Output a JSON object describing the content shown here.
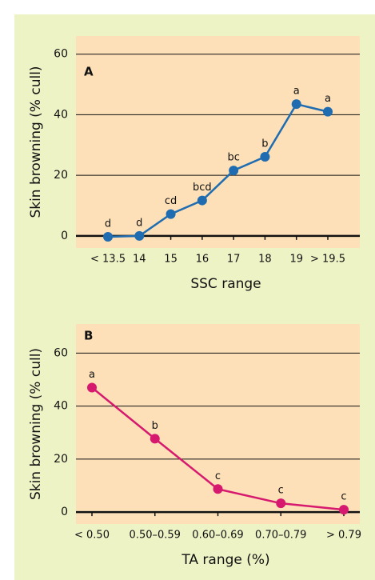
{
  "chart_data": [
    {
      "type": "line",
      "panel": "A",
      "ylabel": "Skin browning (% cull)",
      "xlabel": "SSC range",
      "categories": [
        "< 13.5",
        "14",
        "15",
        "16",
        "17",
        "18",
        "19",
        "> 19.5"
      ],
      "series": [
        {
          "name": "Skin browning",
          "color": "#1f6db0",
          "values": [
            -0.3,
            0,
            7.2,
            11.7,
            21.6,
            26.1,
            43.5,
            41
          ]
        }
      ],
      "letters": [
        "d",
        "d",
        "cd",
        "bcd",
        "bc",
        "b",
        "a",
        "a"
      ],
      "ylim": [
        -4,
        66
      ],
      "yticks": [
        0,
        20,
        40,
        60
      ],
      "grid": true
    },
    {
      "type": "line",
      "panel": "B",
      "ylabel": "Skin browning (% cull)",
      "xlabel": "TA range (%)",
      "categories": [
        "< 0.50",
        "0.50–0.59",
        "0.60–0.69",
        "0.70–0.79",
        "> 0.79"
      ],
      "series": [
        {
          "name": "Skin browning",
          "color": "#d6196e",
          "values": [
            47,
            27.7,
            8.7,
            3.3,
            0.9
          ]
        }
      ],
      "letters": [
        "a",
        "b",
        "c",
        "c",
        "c"
      ],
      "ylim": [
        -4.5,
        71
      ],
      "yticks": [
        0,
        20,
        40,
        60
      ],
      "grid": true
    }
  ]
}
